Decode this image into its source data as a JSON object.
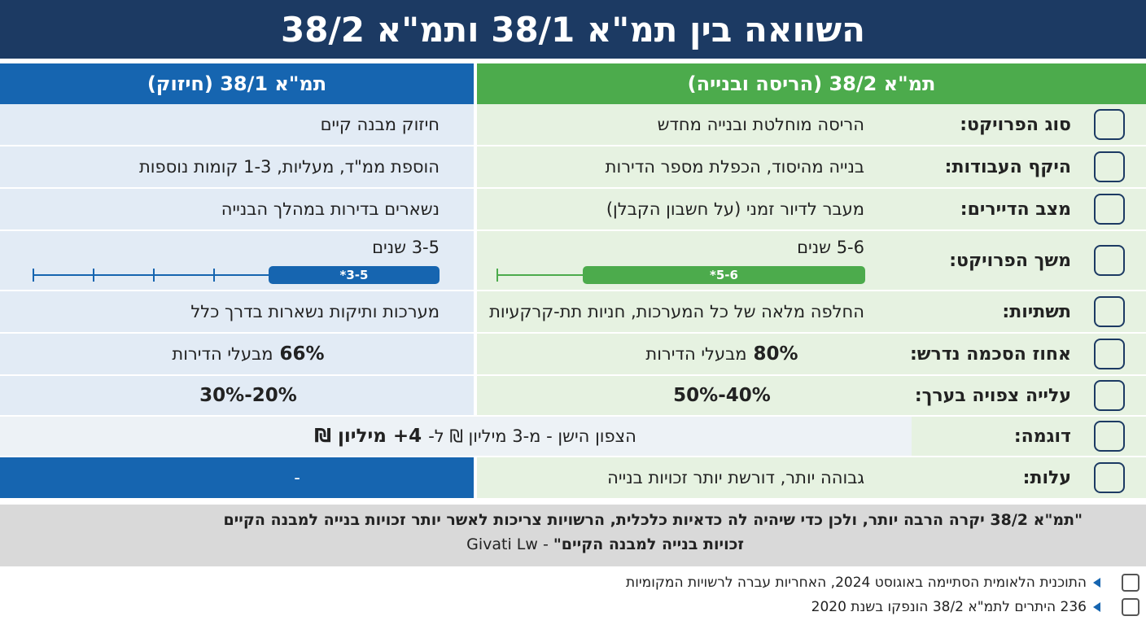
{
  "title": "השוואה בין תמ\"א 38/1 ותמ\"א 38/2",
  "columns": {
    "right": "תמ\"א 38/2 (הריסה ובנייה)",
    "left": "תמ\"א 38/1 (חיזוק)"
  },
  "rows": [
    {
      "label": "סוג הפרויקט:",
      "right": "הריסה מוחלטת ובנייה מחדש",
      "left": "חיזוק מבנה קיים"
    },
    {
      "label": "היקף העבודות:",
      "right": "בנייה מהיסוד, הכפלת מספר הדירות",
      "left": "הוספת ממ\"ד, מעליות, 1-3 קומות נוספות"
    },
    {
      "label": "מצב הדיירים:",
      "right": "מעבר לדיור זמני (על חשבון הקבלן)",
      "left": "נשארים בדירות במהלך הבנייה"
    },
    {
      "label": "משך הפרויקט:",
      "right": {
        "text": "5-6 שנים",
        "bar": "5-6*"
      },
      "left": {
        "text": "3-5 שנים",
        "bar": "3-5*"
      }
    },
    {
      "label": "תשתיות:",
      "right": "החלפה מלאה של כל המערכות, חניות תת-קרקעיות",
      "left": "מערכות ותיקות נשארות בדרך כלל"
    },
    {
      "label": "אחוז הסכמה נדרש:",
      "right": [
        {
          "text": "80%",
          "bold": true
        },
        {
          "text": "מבעלי הדירות"
        }
      ],
      "left": [
        {
          "text": "66%",
          "bold": true
        },
        {
          "text": "מבעלי הדירות"
        }
      ]
    },
    {
      "label": "עלייה צפויה בערך:",
      "right": [
        {
          "text": "40%-50%",
          "bold": true
        }
      ],
      "left": [
        {
          "text": "20%-30%",
          "bold": true
        }
      ]
    },
    {
      "label": "דוגמה:",
      "merged": [
        {
          "text": "הצפון הישן - מ-3 מיליון ₪ ל-"
        },
        {
          "text": "4+ מיליון ₪",
          "bold": true
        }
      ]
    },
    {
      "label": "עלות:",
      "right": "גבוהה יותר, דורשת יותר זכויות בנייה",
      "left": "-"
    }
  ],
  "quote": {
    "line1": "\"תמ\"א 38/2 יקרה הרבה יותר, ולכן כדי שיהיה לה כדאיות כלכלית, הרשויות צריכות לאשר יותר זכויות בנייה למבנה הקיים",
    "line2": "זכויות בנייה למבנה הקיים\"",
    "source": "- Givati Lw"
  },
  "notes": [
    "התוכנית הלאומית הסתיימה באוגוסט 2024, האחריות עברה לרשויות המקומיות",
    "236 היתרים לתמ\"א 38/2 הונפקו בשנת 2020"
  ]
}
